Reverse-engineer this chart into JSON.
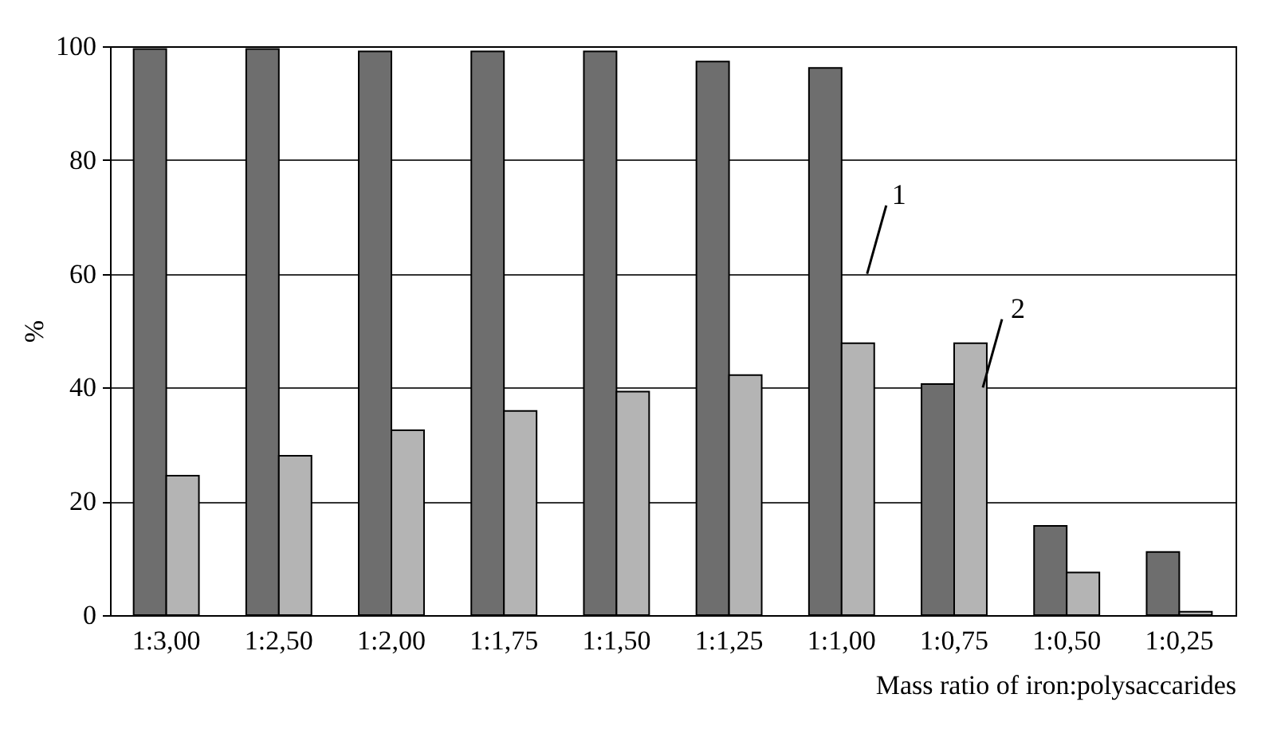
{
  "chart_data": {
    "type": "bar",
    "xlabel": "Mass ratio of iron:polysaccarides",
    "ylabel": "%",
    "categories": [
      "1:3,00",
      "1:2,50",
      "1:2,00",
      "1:1,75",
      "1:1,50",
      "1:1,25",
      "1:1,00",
      "1:0,75",
      "1:0,50",
      "1:0,25"
    ],
    "series": [
      {
        "name": "1",
        "color": "#6e6e6e",
        "values": [
          99.5,
          99.5,
          99.1,
          99.1,
          99.1,
          97.3,
          96.2,
          40.6,
          15.7,
          11.1
        ]
      },
      {
        "name": "2",
        "color": "#b4b4b4",
        "values": [
          24.5,
          28.0,
          32.5,
          35.9,
          39.3,
          42.2,
          47.8,
          47.8,
          7.5,
          0.6
        ]
      }
    ],
    "ylim": [
      0,
      100
    ],
    "yticks": [
      0,
      20,
      40,
      60,
      80,
      100
    ],
    "grid": "y",
    "legend": false
  }
}
